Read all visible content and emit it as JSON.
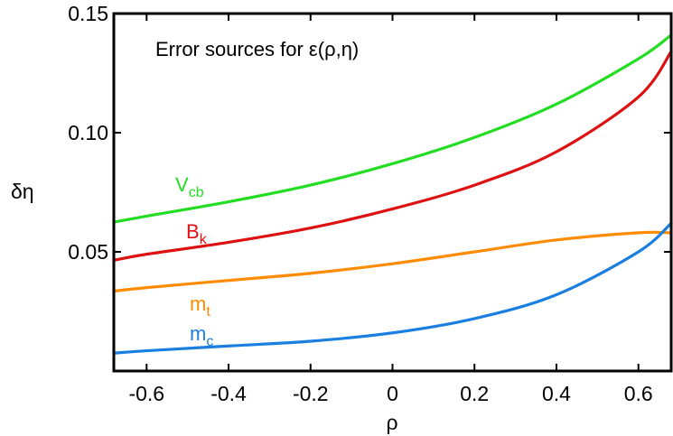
{
  "chart_data": {
    "type": "line",
    "title": "",
    "annotation": "Error sources for ε(ρ,η)",
    "xlabel": "ρ",
    "ylabel": "δη",
    "xlim": [
      -0.68,
      0.68
    ],
    "ylim": [
      0.0,
      0.15
    ],
    "x_ticks": [
      -0.6,
      -0.4,
      -0.2,
      0,
      0.2,
      0.4,
      0.6
    ],
    "x_tick_labels": [
      "-0.6",
      "-0.4",
      "-0.2",
      "0",
      "0.2",
      "0.4",
      "0.6"
    ],
    "y_ticks": [
      0.05,
      0.1,
      0.15
    ],
    "y_tick_labels": [
      "0.05",
      "0.10",
      "0.15"
    ],
    "grid": false,
    "series": [
      {
        "name": "Vcb",
        "label_main": "V",
        "label_sub": "cb",
        "color": "#22dd22",
        "x": [
          -0.68,
          -0.6,
          -0.4,
          -0.2,
          0.0,
          0.2,
          0.4,
          0.6,
          0.68
        ],
        "y": [
          0.0625,
          0.065,
          0.071,
          0.078,
          0.087,
          0.098,
          0.112,
          0.131,
          0.141
        ]
      },
      {
        "name": "Bk",
        "label_main": "B",
        "label_sub": "k",
        "color": "#dd1111",
        "x": [
          -0.68,
          -0.6,
          -0.4,
          -0.2,
          0.0,
          0.2,
          0.4,
          0.6,
          0.68
        ],
        "y": [
          0.0465,
          0.049,
          0.054,
          0.06,
          0.068,
          0.078,
          0.092,
          0.115,
          0.134
        ]
      },
      {
        "name": "mt",
        "label_main": "m",
        "label_sub": "t",
        "color": "#ff8c00",
        "x": [
          -0.68,
          -0.6,
          -0.4,
          -0.2,
          0.0,
          0.2,
          0.4,
          0.6,
          0.68
        ],
        "y": [
          0.0335,
          0.035,
          0.038,
          0.041,
          0.045,
          0.05,
          0.055,
          0.058,
          0.058
        ]
      },
      {
        "name": "mc",
        "label_main": "m",
        "label_sub": "c",
        "color": "#1a7fe0",
        "x": [
          -0.68,
          -0.6,
          -0.4,
          -0.2,
          0.0,
          0.2,
          0.4,
          0.6,
          0.68
        ],
        "y": [
          0.0075,
          0.0085,
          0.0105,
          0.0125,
          0.016,
          0.022,
          0.032,
          0.05,
          0.062
        ]
      }
    ]
  }
}
